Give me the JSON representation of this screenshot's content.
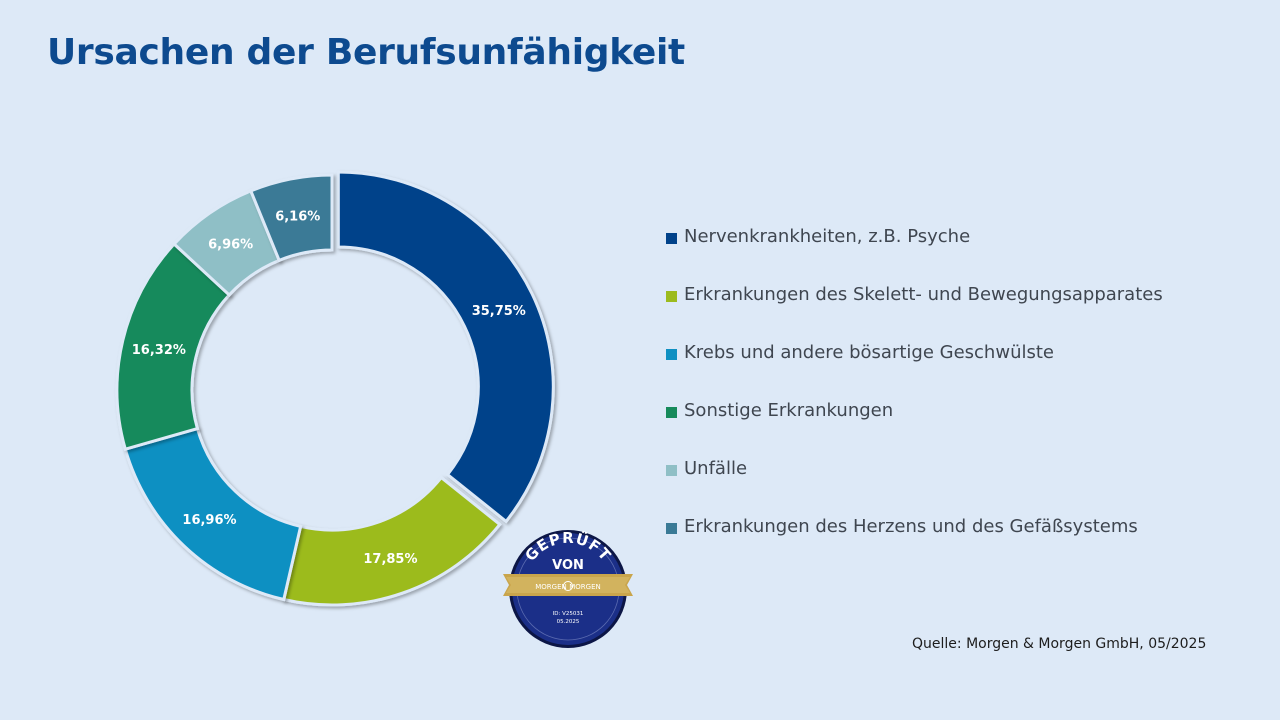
{
  "page": {
    "title": "Ursachen der Berufsunfähigkeit",
    "source": "Quelle: Morgen & Morgen GmbH, 05/2025"
  },
  "colors": {
    "background": "#dde9f7",
    "title": "#0d4a8f"
  },
  "seal": {
    "top_text": "GEPRÜFT",
    "mid_text": "VON",
    "band_left": "MORGEN",
    "band_right": "MORGEN",
    "id_text": "ID: V25031",
    "date_text": "05.2025",
    "colors": {
      "disc": "#182b80",
      "ring": "#0c1646",
      "band": "#c9a54c"
    }
  },
  "chart_data": {
    "type": "pie",
    "variant": "donut",
    "title": "Ursachen der Berufsunfähigkeit",
    "unit": "%",
    "categories": [
      "Nervenkrankheiten, z.B. Psyche",
      "Erkrankungen des Skelett- und Bewegungsapparates",
      "Krebs und andere bösartige Geschwülste",
      "Sonstige Erkrankungen",
      "Unfälle",
      "Erkrankungen des Herzens und des Gefäßsystems"
    ],
    "values": [
      35.75,
      17.85,
      16.96,
      16.32,
      6.96,
      6.16
    ],
    "labels": [
      "35,75%",
      "17,85%",
      "16,96%",
      "16,32%",
      "6,96%",
      "6,16%"
    ],
    "colors": [
      "#00428a",
      "#9cbb1e",
      "#0f90c2",
      "#168a5b",
      "#8fbfc6",
      "#3a7a96"
    ],
    "exploded": [
      0
    ],
    "legend_position": "right"
  }
}
